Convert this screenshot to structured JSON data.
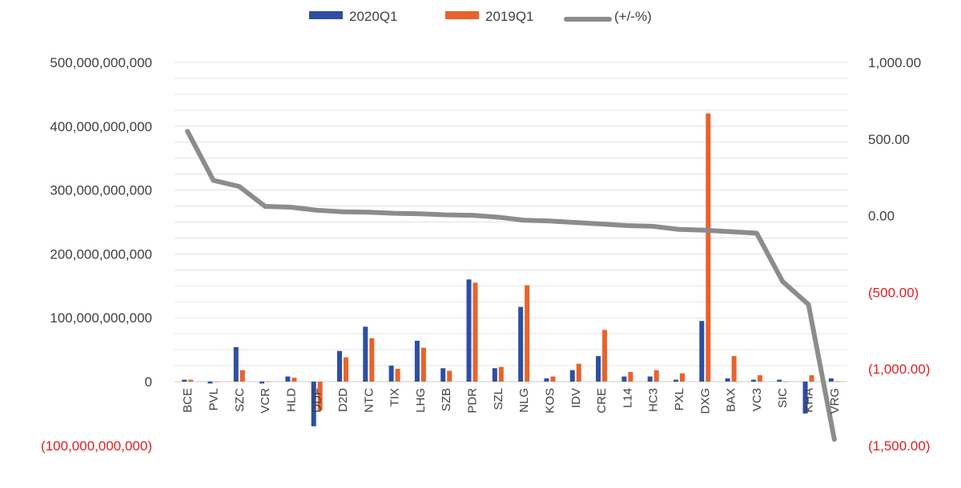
{
  "chart_data": {
    "type": "bar",
    "categories": [
      "BCE",
      "PVL",
      "SZC",
      "VCR",
      "HLD",
      "DDF",
      "D2D",
      "NTC",
      "TIX",
      "LHG",
      "SZB",
      "PDR",
      "SZL",
      "NLG",
      "KOS",
      "IDV",
      "CRE",
      "L14",
      "HC3",
      "PXL",
      "DXG",
      "BAX",
      "VC3",
      "SIC",
      "KHA",
      "VRG"
    ],
    "series": [
      {
        "name": "2020Q1",
        "type": "bar",
        "axis": "left",
        "color": "#2E4EA4",
        "values": [
          3000000000,
          -3000000000,
          54000000000,
          -3000000000,
          8000000000,
          -70000000000,
          48000000000,
          86000000000,
          25000000000,
          64000000000,
          21000000000,
          160000000000,
          21000000000,
          117000000000,
          5000000000,
          18000000000,
          40000000000,
          8000000000,
          8000000000,
          3000000000,
          95000000000,
          5000000000,
          3000000000,
          3000000000,
          -50000000000,
          5000000000
        ]
      },
      {
        "name": "2019Q1",
        "type": "bar",
        "axis": "left",
        "color": "#E8632B",
        "values": [
          3000000000,
          0,
          18000000000,
          0,
          6000000000,
          -45000000000,
          38000000000,
          68000000000,
          20000000000,
          53000000000,
          17000000000,
          155000000000,
          23000000000,
          151000000000,
          8000000000,
          28000000000,
          81000000000,
          15000000000,
          18000000000,
          13000000000,
          420000000000,
          40000000000,
          10000000000,
          0,
          10000000000,
          0
        ]
      },
      {
        "name": "(+/-%)",
        "type": "line",
        "axis": "right",
        "color": "#8C8C8C",
        "values": [
          550,
          230,
          190,
          60,
          55,
          35,
          25,
          22,
          15,
          12,
          5,
          2,
          -10,
          -30,
          -35,
          -45,
          -55,
          -65,
          -70,
          -90,
          -95,
          -105,
          -115,
          -430,
          -580,
          -1460
        ]
      }
    ],
    "left_axis": {
      "ylim": [
        -100000000000,
        500000000000
      ],
      "ticks": [
        {
          "value": 500000000000,
          "label": "500,000,000,000"
        },
        {
          "value": 400000000000,
          "label": "400,000,000,000"
        },
        {
          "value": 300000000000,
          "label": "300,000,000,000"
        },
        {
          "value": 200000000000,
          "label": "200,000,000,000"
        },
        {
          "value": 100000000000,
          "label": "100,000,000,000"
        },
        {
          "value": 0,
          "label": "0"
        },
        {
          "value": -100000000000,
          "label": "(100,000,000,000)"
        }
      ]
    },
    "right_axis": {
      "ylim": [
        -1500,
        1000
      ],
      "ticks": [
        {
          "value": 1000,
          "label": "1,000.00"
        },
        {
          "value": 500,
          "label": "500.00"
        },
        {
          "value": 0,
          "label": "0.00"
        },
        {
          "value": -500,
          "label": "(500.00)"
        },
        {
          "value": -1000,
          "label": "(1,000.00)"
        },
        {
          "value": -1500,
          "label": "(1,500.00)"
        }
      ]
    },
    "negative_label_color": "#E02020",
    "legend_position": "top",
    "grid": true
  }
}
